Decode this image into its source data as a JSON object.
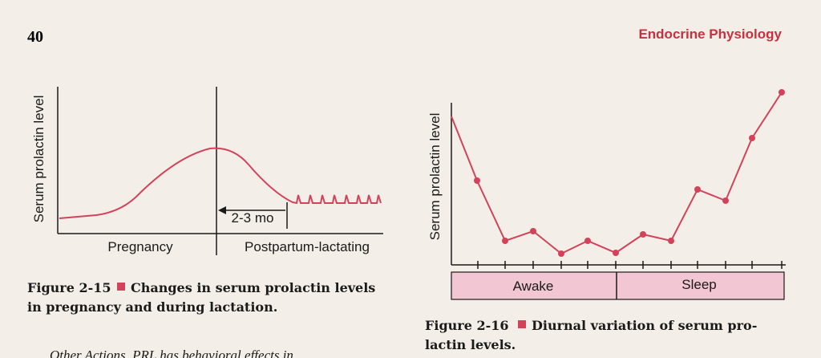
{
  "header": {
    "page_number": "40",
    "running_head": "Endocrine Physiology"
  },
  "figure_2_15": {
    "y_axis_label": "Serum prolactin level",
    "phase_1": "Pregnancy",
    "phase_2": "Postpartum-lactating",
    "interval": "2-3 mo",
    "caption_number": "Figure 2-15",
    "caption_line_1": "Changes in serum prolactin levels",
    "caption_line_2": "in pregnancy and during lactation."
  },
  "figure_2_16": {
    "y_axis_label": "Serum prolactin level",
    "phase_1": "Awake",
    "phase_2": "Sleep",
    "caption_number": "Figure 2-16",
    "caption_line_1": "Diurnal variation of serum pro-",
    "caption_line_2": "lactin levels."
  },
  "body_text": {
    "last_line": "Other Actions. PRL has behavioral effects in"
  }
}
